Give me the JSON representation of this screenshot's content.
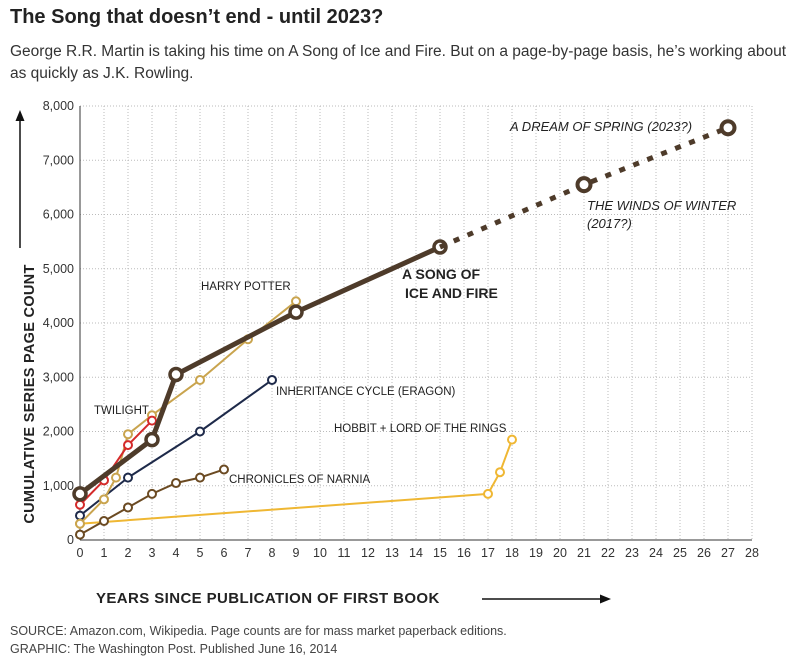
{
  "title": "The Song that doesn’t end - until 2023?",
  "subtitle": "George R.R. Martin is taking his time on A Song of Ice and Fire. But on a page-by-page basis, he’s working about as quickly as J.K. Rowling.",
  "source": "SOURCE: Amazon.com, Wikipedia. Page counts are for mass market paperback editions.",
  "credit": "GRAPHIC: The Washington Post. Published June 16, 2014",
  "chart_data": {
    "type": "line",
    "title": "The Song that doesn’t end - until 2023?",
    "xlabel": "YEARS SINCE PUBLICATION OF FIRST BOOK",
    "ylabel": "CUMULATIVE SERIES PAGE COUNT",
    "xlim": [
      0,
      28
    ],
    "ylim": [
      0,
      8000
    ],
    "x_ticks": [
      "0",
      "1",
      "2",
      "3",
      "4",
      "5",
      "6",
      "7",
      "8",
      "9",
      "10",
      "11",
      "12",
      "13",
      "14",
      "15",
      "16",
      "17",
      "18",
      "19",
      "20",
      "21",
      "22",
      "23",
      "24",
      "25",
      "26",
      "27",
      "28"
    ],
    "y_ticks": [
      "8,000",
      "7,000",
      "6,000",
      "5,000",
      "4,000",
      "3,000",
      "2,000",
      "1,000",
      "0"
    ],
    "grid": true,
    "colors": {
      "asoiaf": "#4e3b2a",
      "harry_potter": "#c9a44e",
      "twilight": "#d42a2a",
      "inheritance": "#1e2a4a",
      "narnia": "#6b4a22",
      "tolkien": "#efb733",
      "grid": "#bbbbbb"
    },
    "series": [
      {
        "name": "HOBBIT + LORD OF THE RINGS",
        "label": "HOBBIT + LORD OF THE RINGS",
        "color": "#efb733",
        "x": [
          0,
          17,
          17.5,
          18
        ],
        "y": [
          300,
          850,
          1250,
          1850
        ]
      },
      {
        "name": "CHRONICLES OF NARNIA",
        "label": "CHRONICLES OF NARNIA",
        "color": "#6b4a22",
        "x": [
          0,
          1,
          2,
          3,
          4,
          5,
          6
        ],
        "y": [
          100,
          350,
          600,
          850,
          1050,
          1150,
          1300
        ]
      },
      {
        "name": "INHERITANCE CYCLE (ERAGON)",
        "label": "INHERITANCE CYCLE (ERAGON)",
        "color": "#1e2a4a",
        "x": [
          0,
          2,
          5,
          8
        ],
        "y": [
          450,
          1150,
          2000,
          2950
        ]
      },
      {
        "name": "HARRY POTTER",
        "label": "HARRY POTTER",
        "color": "#c9a44e",
        "x": [
          0,
          1,
          1.5,
          2,
          3,
          5,
          7,
          9
        ],
        "y": [
          300,
          750,
          1150,
          1950,
          2300,
          2950,
          3700,
          4400
        ]
      },
      {
        "name": "TWILIGHT",
        "label": "TWILIGHT",
        "color": "#d42a2a",
        "x": [
          0,
          1,
          2,
          3
        ],
        "y": [
          650,
          1100,
          1750,
          2200
        ]
      },
      {
        "name": "A SONG OF ICE AND FIRE",
        "label_line1": "A SONG OF",
        "label_line2": "ICE AND FIRE",
        "color": "#4e3b2a",
        "x": [
          0,
          3,
          4,
          9,
          15
        ],
        "y": [
          850,
          1850,
          3050,
          4200,
          5400
        ]
      },
      {
        "name": "A SONG OF ICE AND FIRE (projected)",
        "color": "#4e3b2a",
        "dashed": true,
        "x": [
          15,
          21,
          27
        ],
        "y": [
          5400,
          6550,
          7600
        ]
      }
    ],
    "annotations": [
      {
        "text": "A DREAM OF SPRING (2023?)"
      },
      {
        "text": "THE WINDS OF WINTER"
      },
      {
        "text": "(2017?)"
      }
    ]
  }
}
